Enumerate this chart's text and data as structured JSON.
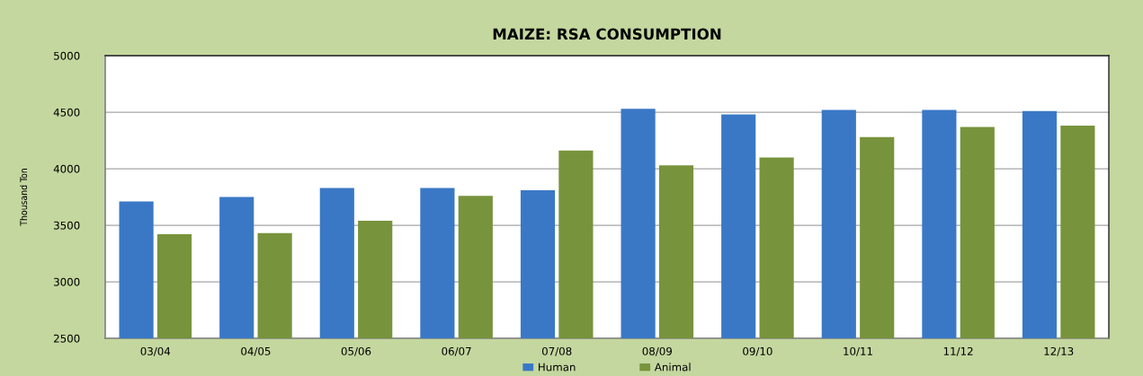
{
  "chart_data": {
    "type": "bar",
    "title": "MAIZE: RSA CONSUMPTION",
    "ylabel": "Thousand Ton",
    "categories": [
      "03/04",
      "04/05",
      "05/06",
      "06/07",
      "07/08",
      "08/09",
      "09/10",
      "10/11",
      "11/12",
      "12/13"
    ],
    "series": [
      {
        "name": "Human",
        "color": "#3a78c6",
        "values": [
          3710,
          3750,
          3830,
          3830,
          3810,
          4530,
          4480,
          4520,
          4520,
          4510
        ]
      },
      {
        "name": "Animal",
        "color": "#77933c",
        "values": [
          3420,
          3430,
          3540,
          3760,
          4160,
          4030,
          4100,
          4280,
          4370,
          4380
        ]
      }
    ],
    "ylim": [
      2500,
      5000
    ],
    "yticks": [
      2500,
      3000,
      3500,
      4000,
      4500,
      5000
    ],
    "grid": "y",
    "legend": "bottom"
  }
}
